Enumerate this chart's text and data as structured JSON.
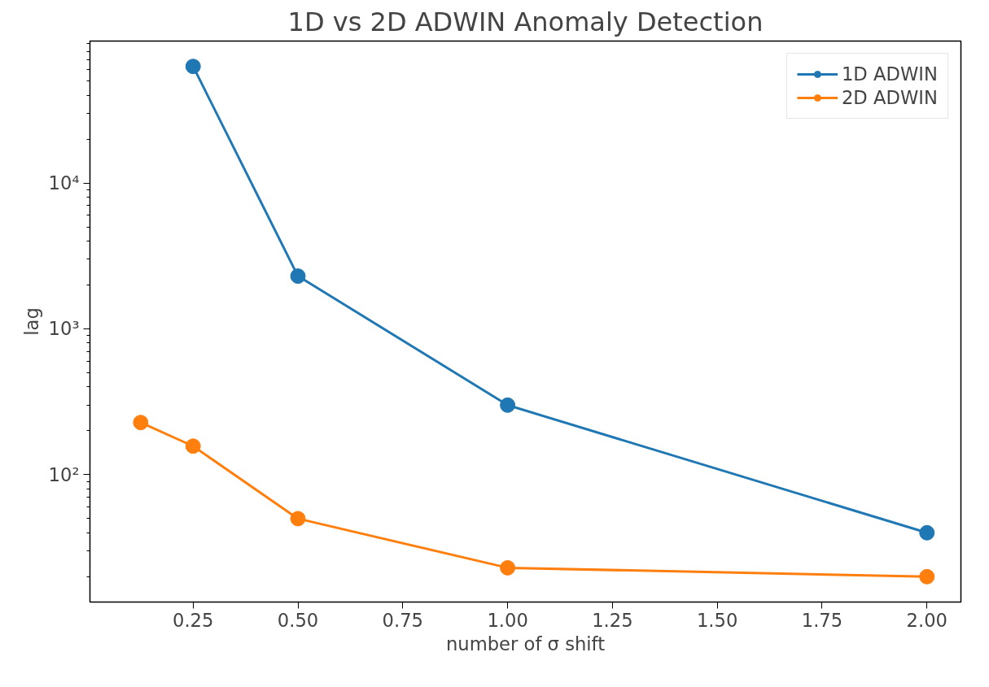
{
  "chart_data": {
    "type": "line",
    "title": "1D vs 2D ADWIN Anomaly Detection",
    "xlabel": "number of σ shift",
    "ylabel": "lag",
    "series": [
      {
        "name": "1D ADWIN",
        "color": "#1f77b4",
        "x": [
          0.25,
          0.5,
          1.0,
          2.0
        ],
        "values": [
          63000,
          2300,
          300,
          40
        ]
      },
      {
        "name": "2D ADWIN",
        "color": "#ff7f0e",
        "x": [
          0.125,
          0.25,
          0.5,
          1.0,
          2.0
        ],
        "values": [
          228,
          157,
          50,
          23,
          20
        ]
      }
    ],
    "log": "y",
    "xlim": [
      0.004,
      2.081
    ],
    "ylim": [
      13.4,
      94000
    ],
    "xticks": [
      {
        "value": 0.25,
        "label": "0.25"
      },
      {
        "value": 0.5,
        "label": "0.50"
      },
      {
        "value": 0.75,
        "label": "0.75"
      },
      {
        "value": 1.0,
        "label": "1.00"
      },
      {
        "value": 1.25,
        "label": "1.25"
      },
      {
        "value": 1.5,
        "label": "1.50"
      },
      {
        "value": 1.75,
        "label": "1.75"
      },
      {
        "value": 2.0,
        "label": "2.00"
      }
    ],
    "yticks": [
      {
        "value": 100,
        "label": "10²"
      },
      {
        "value": 1000,
        "label": "10³"
      },
      {
        "value": 10000,
        "label": "10⁴"
      }
    ],
    "legend": "top right",
    "marker": "circle",
    "line_style": "solid",
    "grid": false
  }
}
